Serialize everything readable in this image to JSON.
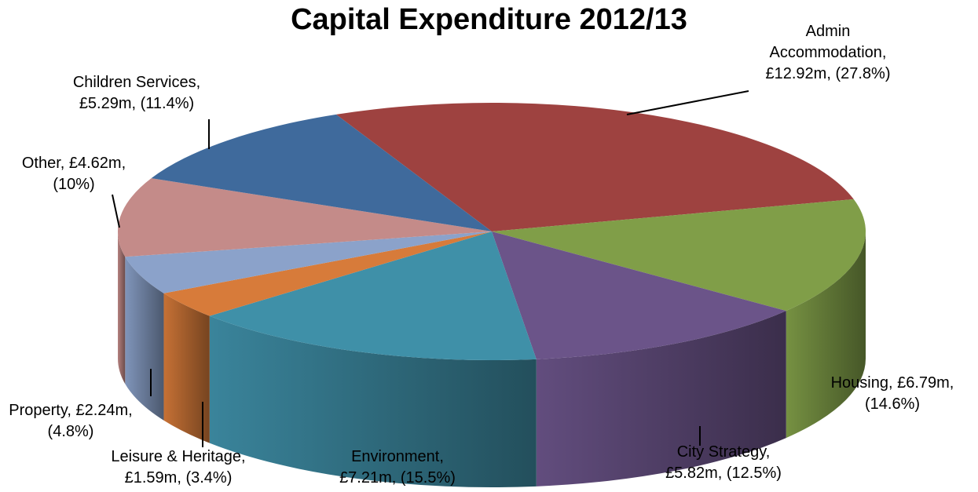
{
  "chart_data": {
    "type": "pie",
    "title": "Capital Expenditure 2012/13",
    "slices": [
      {
        "name": "Admin Accommodation",
        "value": 12.92,
        "percent": 27.8,
        "color": "#9E4240",
        "label_lines": [
          "Admin",
          "Accommodation,",
          "£12.92m, (27.8%)"
        ]
      },
      {
        "name": "Housing",
        "value": 6.79,
        "percent": 14.6,
        "color": "#809E48",
        "label_lines": [
          "Housing, £6.79m,",
          "(14.6%)"
        ]
      },
      {
        "name": "City Strategy",
        "value": 5.82,
        "percent": 12.5,
        "color": "#6B5489",
        "label_lines": [
          "City Strategy,",
          "£5.82m, (12.5%)"
        ]
      },
      {
        "name": "Environment",
        "value": 7.21,
        "percent": 15.5,
        "color": "#3F90A8",
        "label_lines": [
          "Environment,",
          "£7.21m, (15.5%)"
        ]
      },
      {
        "name": "Leisure & Heritage",
        "value": 1.59,
        "percent": 3.4,
        "color": "#D77B3A",
        "label_lines": [
          "Leisure & Heritage,",
          "£1.59m, (3.4%)"
        ]
      },
      {
        "name": "Property",
        "value": 2.24,
        "percent": 4.8,
        "color": "#8BA2CA",
        "label_lines": [
          "Property, £2.24m,",
          "(4.8%)"
        ]
      },
      {
        "name": "Other",
        "value": 4.62,
        "percent": 10,
        "color": "#C48B89",
        "label_lines": [
          "Other, £4.62m,",
          "(10%)"
        ]
      },
      {
        "name": "Children Services",
        "value": 5.29,
        "percent": 11.4,
        "color": "#3F6A9C",
        "label_lines": [
          "Children Services,",
          "£5.29m, (11.4%)"
        ]
      }
    ]
  }
}
